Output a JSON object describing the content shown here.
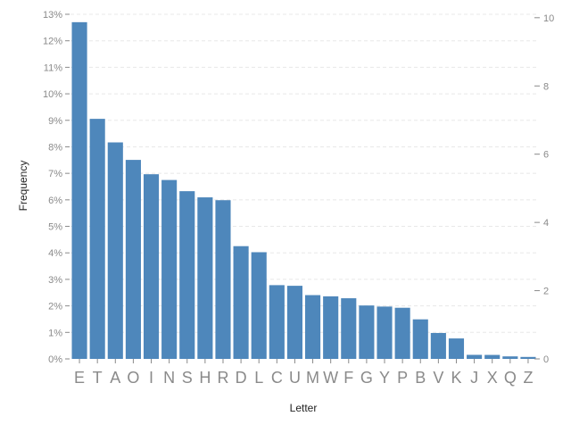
{
  "chart_data": {
    "type": "bar",
    "xlabel": "Letter",
    "ylabel": "Frequency",
    "categories": [
      "E",
      "T",
      "A",
      "O",
      "I",
      "N",
      "S",
      "H",
      "R",
      "D",
      "L",
      "C",
      "U",
      "M",
      "W",
      "F",
      "G",
      "Y",
      "P",
      "B",
      "V",
      "K",
      "J",
      "X",
      "Q",
      "Z"
    ],
    "series": [
      {
        "values": [
          0.12702,
          0.09056,
          0.08167,
          0.07507,
          0.06966,
          0.06749,
          0.06327,
          0.06094,
          0.05987,
          0.04253,
          0.04025,
          0.02782,
          0.02758,
          0.02406,
          0.0236,
          0.02288,
          0.02015,
          0.01974,
          0.01929,
          0.01492,
          0.00978,
          0.00772,
          0.00153,
          0.0015,
          0.00095,
          0.00074
        ]
      }
    ],
    "ylim": [
      0,
      0.13
    ],
    "y_ticks": [
      0,
      0.01,
      0.02,
      0.03,
      0.04,
      0.05,
      0.06,
      0.07,
      0.08,
      0.09,
      0.1,
      0.11,
      0.12,
      0.13
    ],
    "y_tick_labels": [
      "0%",
      "1%",
      "2%",
      "3%",
      "4%",
      "5%",
      "6%",
      "7%",
      "8%",
      "9%",
      "10%",
      "11%",
      "12%",
      "13%"
    ],
    "y2_ticks": [
      0,
      2,
      4,
      6,
      8,
      10
    ],
    "y2_tick_labels": [
      "0",
      "2",
      "4",
      "6",
      "8",
      "10"
    ],
    "y2lim": [
      0,
      10.1
    ],
    "grid": true,
    "bar_color": "#4e87bb",
    "grid_color": "#e8e8e8",
    "tick_color": "#8a8a8a"
  }
}
